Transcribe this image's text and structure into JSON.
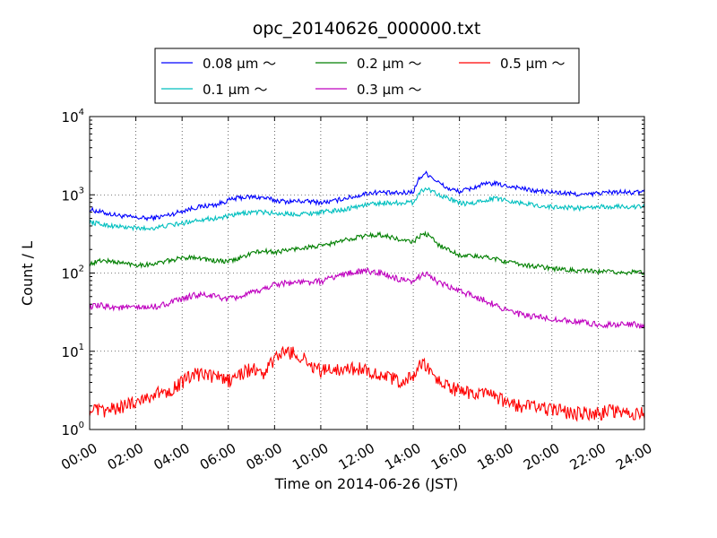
{
  "chart_data": {
    "type": "line",
    "title": "opc_20140626_000000.txt",
    "xlabel": "Time on 2014-06-26 (JST)",
    "ylabel": "Count / L",
    "x_unit": "hour",
    "xlim": [
      0,
      24
    ],
    "ylim": [
      1,
      10000
    ],
    "y_scale": "log",
    "grid": true,
    "legend_position": "top",
    "x_tick_labels": [
      "00:00",
      "02:00",
      "04:00",
      "06:00",
      "08:00",
      "10:00",
      "12:00",
      "14:00",
      "16:00",
      "18:00",
      "20:00",
      "22:00",
      "24:00"
    ],
    "x_ticks": [
      0,
      2,
      4,
      6,
      8,
      10,
      12,
      14,
      16,
      18,
      20,
      22,
      24
    ],
    "y_ticks": [
      {
        "value": 1,
        "base": "10",
        "exp": "0"
      },
      {
        "value": 10,
        "base": "10",
        "exp": "1"
      },
      {
        "value": 100,
        "base": "10",
        "exp": "2"
      },
      {
        "value": 1000,
        "base": "10",
        "exp": "3"
      },
      {
        "value": 10000,
        "base": "10",
        "exp": "4"
      }
    ],
    "series": [
      {
        "name": "0.08 μm ～",
        "color": "#0000ff",
        "x": [
          0,
          0.5,
          1,
          1.5,
          2,
          2.5,
          3,
          3.5,
          4,
          4.5,
          5,
          5.5,
          6,
          6.5,
          7,
          7.5,
          8,
          8.5,
          9,
          9.5,
          10,
          10.5,
          11,
          11.5,
          12,
          12.5,
          13,
          13.5,
          14,
          14.25,
          14.5,
          14.75,
          15,
          15.5,
          16,
          16.5,
          17,
          17.5,
          18,
          18.5,
          19,
          19.5,
          20,
          20.5,
          21,
          21.5,
          22,
          22.5,
          23,
          23.5,
          24
        ],
        "y": [
          650,
          600,
          560,
          530,
          510,
          500,
          520,
          560,
          620,
          680,
          720,
          750,
          850,
          920,
          940,
          920,
          850,
          820,
          830,
          820,
          800,
          820,
          900,
          950,
          1050,
          1080,
          1050,
          1050,
          1100,
          1600,
          1900,
          1750,
          1500,
          1200,
          1100,
          1200,
          1350,
          1400,
          1300,
          1250,
          1150,
          1100,
          1080,
          1050,
          1020,
          1000,
          1050,
          1080,
          1080,
          1060,
          1100
        ],
        "noise": 0.03
      },
      {
        "name": "0.1 μm ～",
        "color": "#00bfbf",
        "x": [
          0,
          0.5,
          1,
          1.5,
          2,
          2.5,
          3,
          3.5,
          4,
          4.5,
          5,
          5.5,
          6,
          6.5,
          7,
          7.5,
          8,
          8.5,
          9,
          9.5,
          10,
          10.5,
          11,
          11.5,
          12,
          12.5,
          13,
          13.5,
          14,
          14.25,
          14.5,
          14.75,
          15,
          15.5,
          16,
          16.5,
          17,
          17.5,
          18,
          18.5,
          19,
          19.5,
          20,
          20.5,
          21,
          21.5,
          22,
          22.5,
          23,
          23.5,
          24
        ],
        "y": [
          450,
          420,
          400,
          385,
          375,
          370,
          385,
          410,
          430,
          470,
          490,
          500,
          530,
          570,
          600,
          600,
          580,
          570,
          570,
          580,
          600,
          620,
          650,
          700,
          750,
          780,
          790,
          790,
          800,
          1050,
          1200,
          1150,
          1050,
          900,
          780,
          760,
          850,
          900,
          860,
          800,
          760,
          720,
          700,
          690,
          680,
          670,
          700,
          700,
          710,
          700,
          710
        ],
        "noise": 0.03
      },
      {
        "name": "0.2 μm ～",
        "color": "#007f00",
        "x": [
          0,
          0.5,
          1,
          1.5,
          2,
          2.5,
          3,
          3.5,
          4,
          4.5,
          5,
          5.5,
          6,
          6.5,
          7,
          7.5,
          8,
          8.5,
          9,
          9.5,
          10,
          10.5,
          11,
          11.5,
          12,
          12.5,
          13,
          13.5,
          14,
          14.25,
          14.5,
          14.75,
          15,
          15.5,
          16,
          16.5,
          17,
          17.5,
          18,
          18.5,
          19,
          19.5,
          20,
          20.5,
          21,
          21.5,
          22,
          22.5,
          23,
          23.5,
          24
        ],
        "y": [
          130,
          145,
          140,
          133,
          128,
          128,
          135,
          145,
          155,
          162,
          150,
          142,
          140,
          155,
          180,
          190,
          185,
          195,
          205,
          215,
          220,
          240,
          260,
          285,
          300,
          310,
          290,
          260,
          250,
          290,
          320,
          290,
          240,
          200,
          170,
          165,
          160,
          155,
          140,
          130,
          125,
          120,
          115,
          110,
          108,
          106,
          104,
          103,
          102,
          102,
          102
        ],
        "noise": 0.03
      },
      {
        "name": "0.3 μm ～",
        "color": "#bf00bf",
        "x": [
          0,
          0.5,
          1,
          1.5,
          2,
          2.5,
          3,
          3.5,
          4,
          4.5,
          5,
          5.5,
          6,
          6.5,
          7,
          7.5,
          8,
          8.5,
          9,
          9.5,
          10,
          10.5,
          11,
          11.5,
          12,
          12.5,
          13,
          13.5,
          14,
          14.25,
          14.5,
          14.75,
          15,
          15.5,
          16,
          16.5,
          17,
          17.5,
          18,
          18.5,
          19,
          19.5,
          20,
          20.5,
          21,
          21.5,
          22,
          22.5,
          23,
          23.5,
          24
        ],
        "y": [
          37,
          38,
          37,
          36,
          36,
          36,
          38,
          42,
          46,
          52,
          52,
          50,
          46,
          50,
          55,
          62,
          72,
          75,
          76,
          76,
          78,
          88,
          97,
          103,
          105,
          102,
          90,
          80,
          75,
          90,
          100,
          92,
          78,
          67,
          58,
          53,
          46,
          40,
          34,
          30,
          28,
          27,
          26,
          25,
          24,
          23,
          22,
          22,
          22,
          22,
          21
        ],
        "noise": 0.04
      },
      {
        "name": "0.5 μm ～",
        "color": "#ff0000",
        "x": [
          0,
          0.5,
          1,
          1.5,
          2,
          2.5,
          3,
          3.5,
          4,
          4.5,
          5,
          5.5,
          6,
          6.5,
          7,
          7.5,
          8,
          8.5,
          9,
          9.5,
          10,
          10.5,
          11,
          11.5,
          12,
          12.5,
          13,
          13.5,
          14,
          14.25,
          14.5,
          14.75,
          15,
          15.5,
          16,
          16.5,
          17,
          17.5,
          18,
          18.5,
          19,
          19.5,
          20,
          20.5,
          21,
          21.5,
          22,
          22.5,
          23,
          23.5,
          24
        ],
        "y": [
          1.8,
          1.7,
          1.8,
          2,
          2.3,
          2.6,
          2.9,
          3.2,
          4,
          5,
          5,
          4.7,
          4.2,
          5,
          6,
          5,
          8,
          10,
          9,
          7,
          5.5,
          6,
          6,
          6,
          5.8,
          5,
          4.5,
          4,
          4.8,
          6.5,
          6.5,
          5.5,
          4.5,
          3.5,
          3.1,
          2.9,
          2.8,
          2.6,
          2.2,
          2,
          2,
          1.9,
          1.8,
          1.7,
          1.6,
          1.6,
          1.6,
          1.7,
          1.7,
          1.6,
          1.6
        ],
        "noise": 0.09
      }
    ]
  }
}
